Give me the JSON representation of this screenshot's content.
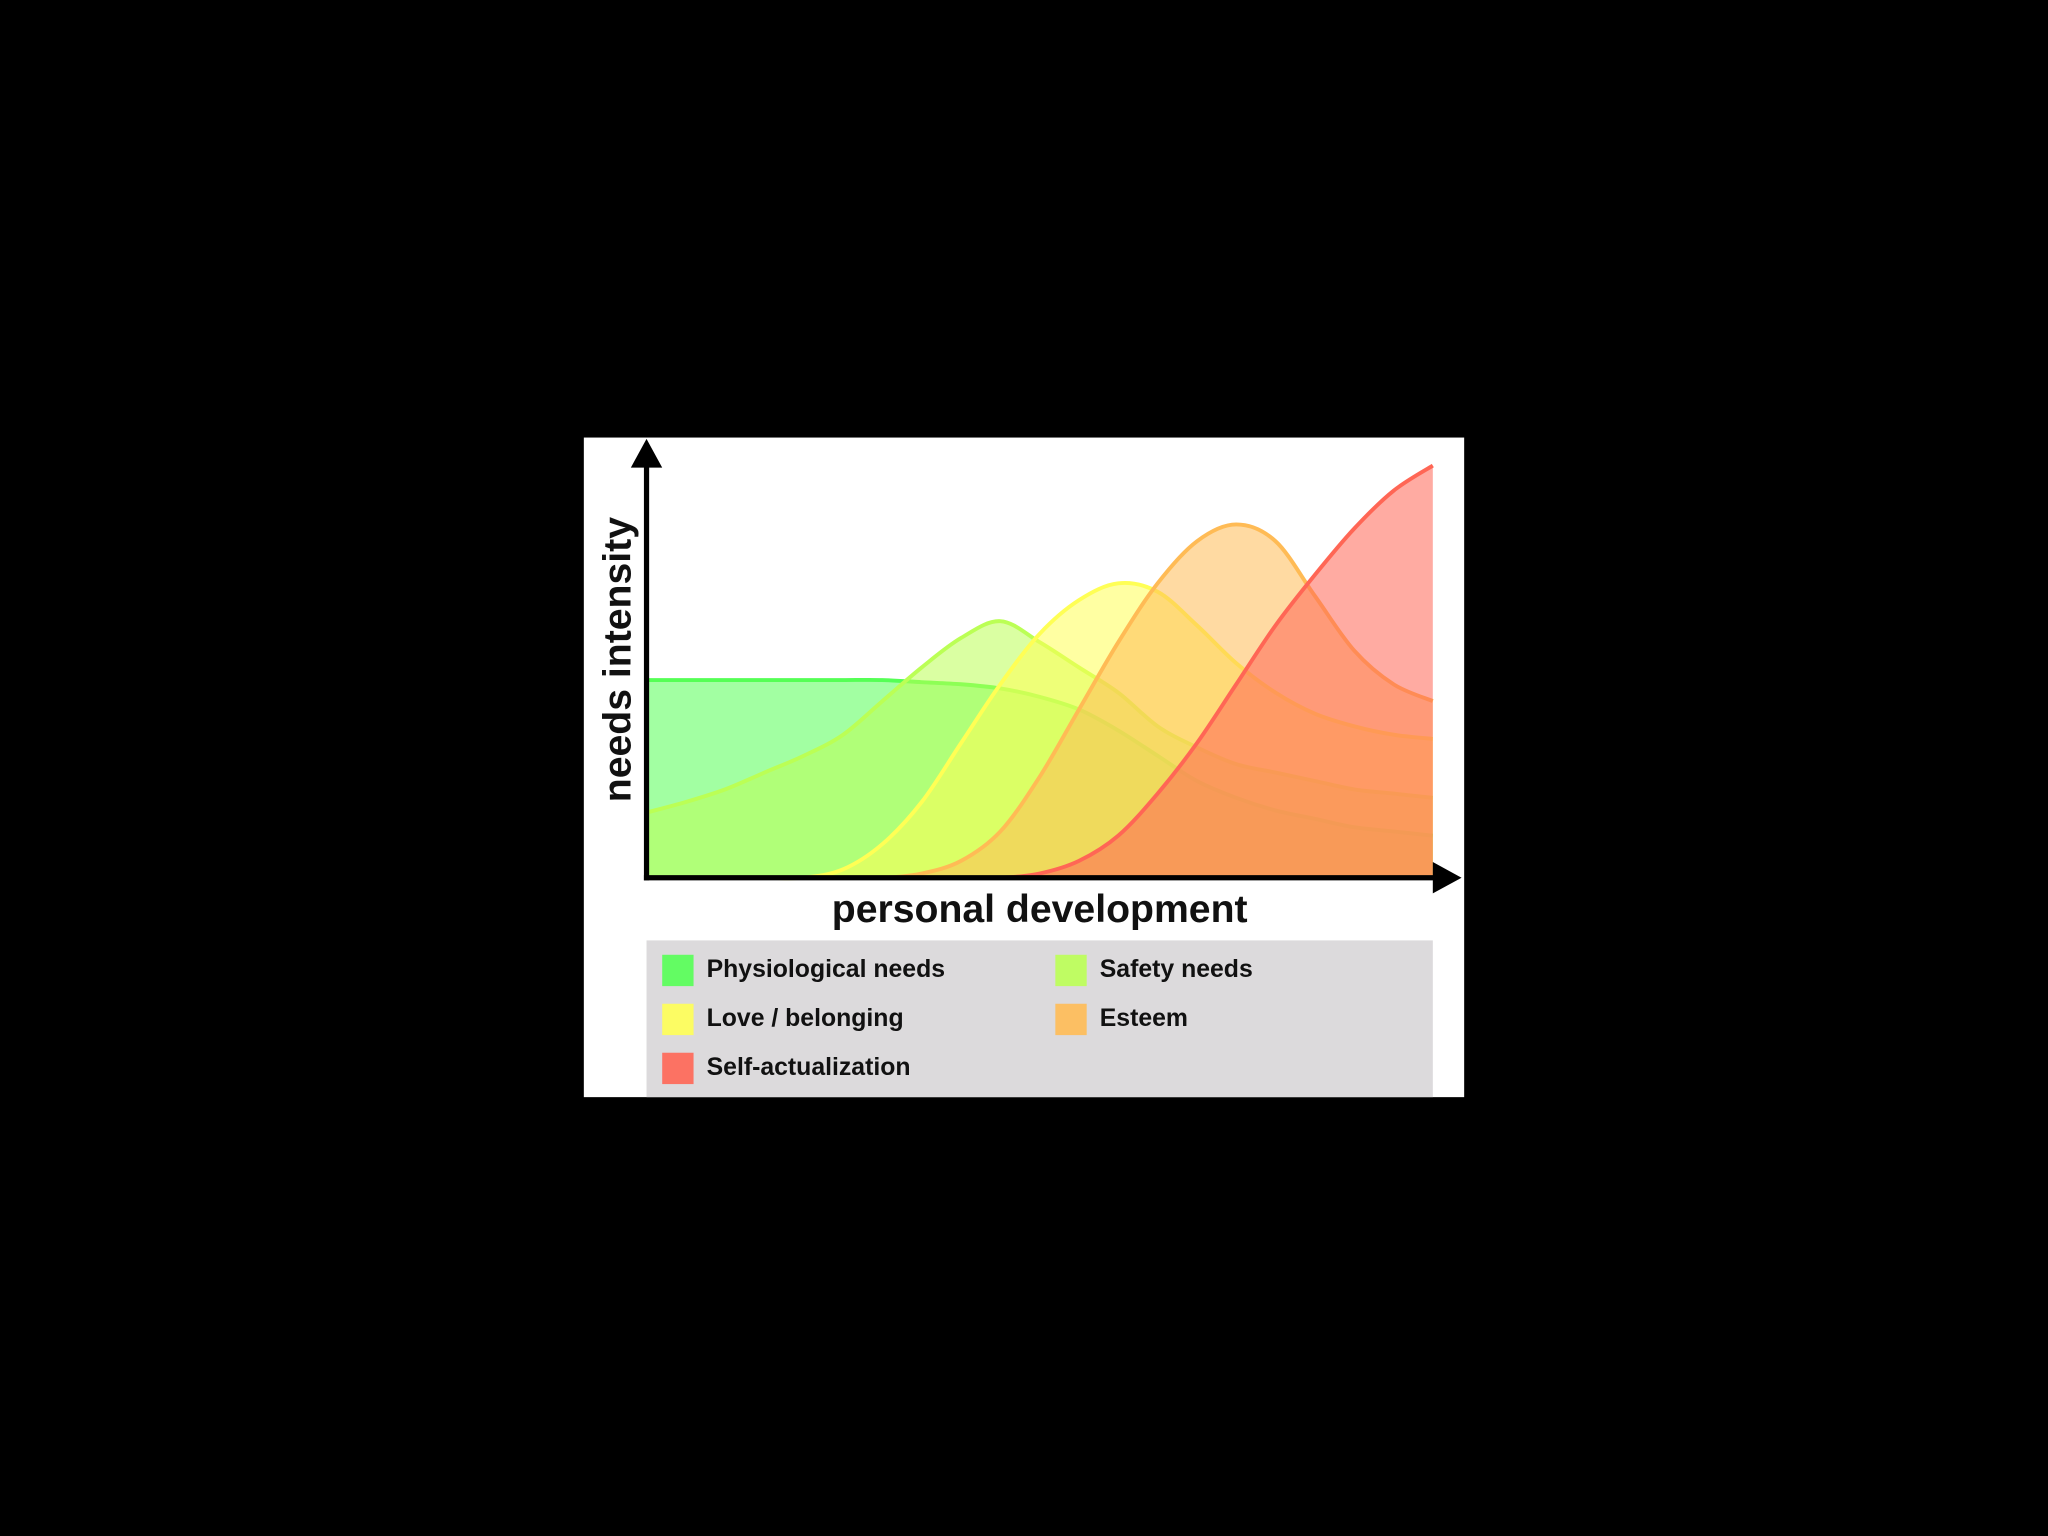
{
  "chart_data": {
    "type": "area",
    "ylabel": "needs intensity",
    "xlabel": "personal development",
    "x": [
      0,
      5,
      10,
      15,
      20,
      25,
      30,
      35,
      40,
      45,
      50,
      55,
      60,
      65,
      70,
      75,
      80,
      85,
      90,
      95,
      100
    ],
    "xlim": [
      0,
      100
    ],
    "ylim": [
      0,
      100
    ],
    "series": [
      {
        "name": "Physiological needs",
        "color": "#55ff55",
        "values": [
          47,
          47,
          47,
          47,
          47,
          47,
          47,
          46.5,
          46,
          45,
          43,
          40,
          35,
          29,
          23,
          19,
          16,
          14,
          12,
          11,
          10
        ]
      },
      {
        "name": "Safety needs",
        "color": "#bbff55",
        "values": [
          15.5,
          18,
          21,
          25,
          29,
          34,
          42,
          50,
          57,
          61,
          56,
          50,
          44,
          36,
          31,
          27,
          25,
          23,
          21,
          20,
          19
        ]
      },
      {
        "name": "Love / belonging",
        "color": "#ffff55",
        "values": [
          0,
          0,
          0,
          0,
          0,
          2,
          8,
          18,
          32,
          46,
          58,
          66,
          70,
          68,
          60,
          51,
          44,
          39,
          36,
          34,
          33
        ]
      },
      {
        "name": "Esteem",
        "color": "#ffbb55",
        "values": [
          0,
          0,
          0,
          0,
          0,
          0,
          0,
          1,
          4,
          11,
          24,
          40,
          56,
          70,
          80,
          84,
          80,
          67,
          54,
          46,
          42
        ]
      },
      {
        "name": "Self-actualization",
        "color": "#ff6655",
        "values": [
          0,
          0,
          0,
          0,
          0,
          0,
          0,
          0,
          0,
          0,
          1,
          4,
          10,
          20,
          32,
          46,
          60,
          72,
          83,
          92,
          98
        ]
      }
    ]
  }
}
